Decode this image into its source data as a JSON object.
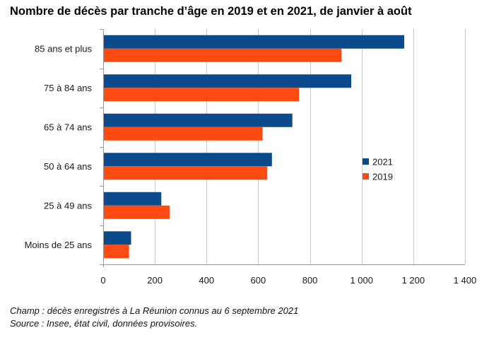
{
  "chart_data": {
    "type": "bar",
    "orientation": "horizontal",
    "title": "Nombre de décès par tranche d’âge en 2019 et en 2021, de janvier à août",
    "categories": [
      "85 ans et plus",
      "75 à 84 ans",
      "65 à 74 ans",
      "50 à 64 ans",
      "25 à 49 ans",
      "Moins de 25 ans"
    ],
    "series": [
      {
        "name": "2021",
        "color": "#0b4a8b",
        "values": [
          1165,
          960,
          732,
          653,
          225,
          108
        ]
      },
      {
        "name": "2019",
        "color": "#ff4a12",
        "values": [
          922,
          758,
          617,
          635,
          258,
          100
        ]
      }
    ],
    "xlim": [
      0,
      1400
    ],
    "xticks": [
      0,
      200,
      400,
      600,
      800,
      1000,
      1200,
      1400
    ],
    "xtick_labels": [
      "0",
      "200",
      "400",
      "600",
      "800",
      "1 000",
      "1 200",
      "1 400"
    ],
    "grid": true,
    "legend_position": "right"
  },
  "notes": {
    "champ": "Champ : décès enregistrés à La Réunion connus au 6 septembre 2021",
    "source": "Source : Insee, état civil, données provisoires."
  }
}
